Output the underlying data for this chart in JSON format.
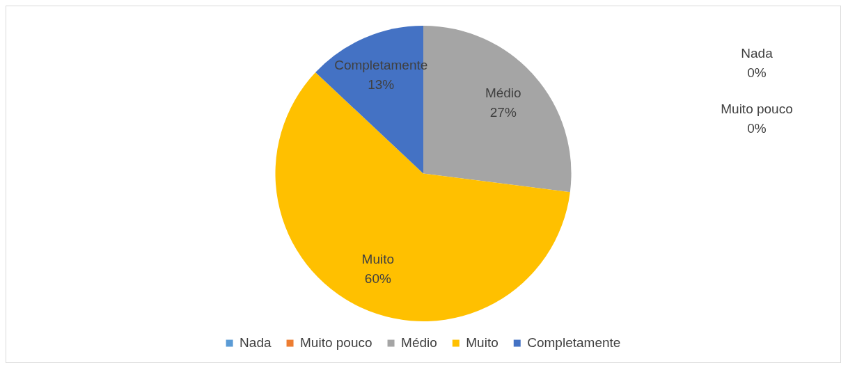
{
  "chart_data": {
    "type": "pie",
    "categories": [
      "Nada",
      "Muito pouco",
      "Médio",
      "Muito",
      "Completamente"
    ],
    "values": [
      0,
      0,
      27,
      60,
      13
    ],
    "colors": [
      "#5b9bd5",
      "#ed7d31",
      "#a5a5a5",
      "#ffc000",
      "#4472c4"
    ],
    "value_labels": [
      "0%",
      "0%",
      "27%",
      "60%",
      "13%"
    ],
    "legend": "bottom"
  }
}
